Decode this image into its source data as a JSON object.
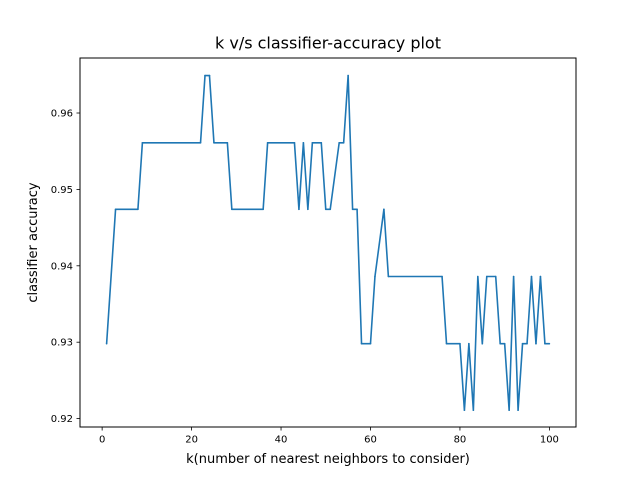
{
  "chart_data": {
    "type": "line",
    "title": "k v/s classifier-accuracy plot",
    "xlabel": "k(number of nearest neighbors to consider)",
    "ylabel": "classifier accuracy",
    "xlim": [
      -4.95,
      105.95
    ],
    "ylim": [
      0.9189,
      0.9672
    ],
    "x_ticks": [
      0,
      20,
      40,
      60,
      80,
      100
    ],
    "x_tick_labels": [
      "0",
      "20",
      "40",
      "60",
      "80",
      "100"
    ],
    "y_ticks": [
      0.92,
      0.93,
      0.94,
      0.95,
      0.96
    ],
    "y_tick_labels": [
      "0.92",
      "0.93",
      "0.94",
      "0.95",
      "0.96"
    ],
    "grid": false,
    "series": [
      {
        "color": "#1f77b4",
        "x": [
          1,
          3,
          8,
          9,
          22,
          23,
          24,
          25,
          28,
          29,
          36,
          37,
          43,
          44,
          45,
          46,
          47,
          49,
          50,
          51,
          53,
          54,
          55,
          56,
          57,
          58,
          60,
          61,
          63,
          64,
          76,
          77,
          80,
          81,
          82,
          83,
          84,
          85,
          86,
          88,
          89,
          90,
          91,
          92,
          93,
          94,
          95,
          96,
          97,
          98,
          99,
          100
        ],
        "y": [
          0.9298,
          0.9474,
          0.9474,
          0.9561,
          0.9561,
          0.9649,
          0.9649,
          0.9561,
          0.9561,
          0.9474,
          0.9474,
          0.9561,
          0.9561,
          0.9474,
          0.9561,
          0.9474,
          0.9561,
          0.9561,
          0.9474,
          0.9474,
          0.9561,
          0.9561,
          0.9649,
          0.9474,
          0.9474,
          0.9298,
          0.9298,
          0.9386,
          0.9474,
          0.9386,
          0.9386,
          0.9298,
          0.9298,
          0.9211,
          0.9298,
          0.9211,
          0.9386,
          0.9298,
          0.9386,
          0.9386,
          0.9298,
          0.9298,
          0.9211,
          0.9386,
          0.9211,
          0.9298,
          0.9298,
          0.9386,
          0.9298,
          0.9386,
          0.9298,
          0.9298
        ]
      }
    ]
  }
}
